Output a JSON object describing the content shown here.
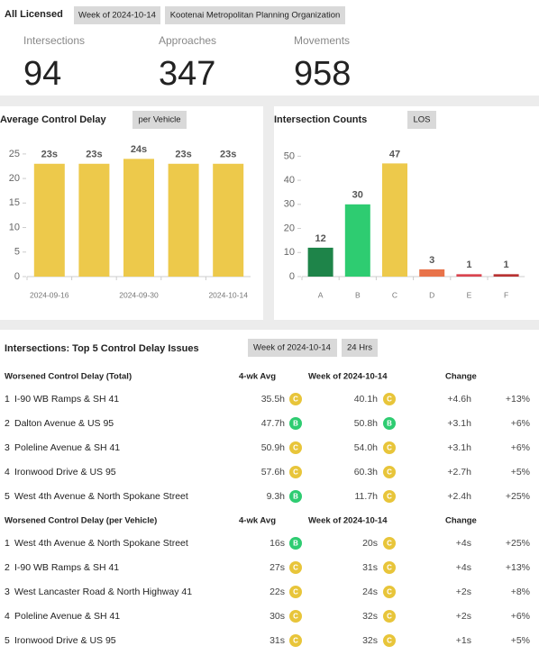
{
  "header": {
    "title": "All Licensed",
    "tags": [
      "Week of 2024-10-14",
      "Kootenai Metropolitan Planning Organization"
    ]
  },
  "stats": [
    {
      "label": "Intersections",
      "value": 94
    },
    {
      "label": "Approaches",
      "value": 347
    },
    {
      "label": "Movements",
      "value": 958
    }
  ],
  "chart_data": [
    {
      "type": "bar",
      "title": "Average Control Delay",
      "button": "per Vehicle",
      "categories": [
        "2024-09-16",
        null,
        "2024-09-30",
        null,
        "2024-10-14"
      ],
      "values": [
        23,
        23,
        24,
        23,
        23
      ],
      "value_labels": [
        "23s",
        "23s",
        "24s",
        "23s",
        "23s"
      ],
      "color": "#edc94b",
      "ylim": [
        0,
        27
      ],
      "yticks": [
        0,
        5,
        10,
        15,
        20,
        25
      ]
    },
    {
      "type": "bar",
      "title": "Intersection Counts",
      "button": "LOS",
      "categories": [
        "A",
        "B",
        "C",
        "D",
        "E",
        "F"
      ],
      "values": [
        12,
        30,
        47,
        3,
        1,
        1
      ],
      "colors": [
        "#1e8449",
        "#2ecc71",
        "#edc94b",
        "#e8734a",
        "#d9444f",
        "#b83232"
      ],
      "ylim": [
        0,
        55
      ],
      "yticks": [
        0,
        10,
        20,
        30,
        40,
        50
      ]
    }
  ],
  "table": {
    "title": "Intersections: Top 5 Control Delay Issues",
    "buttons": [
      "Week of 2024-10-14",
      "24 Hrs"
    ],
    "los_colors": {
      "B": "#2ecc71",
      "C": "#e8c53a"
    },
    "sections": [
      {
        "columns": [
          "Worsened Control Delay (Total)",
          "4-wk Avg",
          "Week of 2024-10-14",
          "Change"
        ],
        "rows": [
          [
            "1",
            "I-90 WB Ramps & SH 41",
            "35.5h",
            "C",
            "40.1h",
            "C",
            "+4.6h",
            "+13%"
          ],
          [
            "2",
            "Dalton Avenue & US 95",
            "47.7h",
            "B",
            "50.8h",
            "B",
            "+3.1h",
            "+6%"
          ],
          [
            "3",
            "Poleline Avenue & SH 41",
            "50.9h",
            "C",
            "54.0h",
            "C",
            "+3.1h",
            "+6%"
          ],
          [
            "4",
            "Ironwood Drive & US 95",
            "57.6h",
            "C",
            "60.3h",
            "C",
            "+2.7h",
            "+5%"
          ],
          [
            "5",
            "West 4th Avenue & North Spokane Street",
            "9.3h",
            "B",
            "11.7h",
            "C",
            "+2.4h",
            "+25%"
          ]
        ]
      },
      {
        "columns": [
          "Worsened Control Delay (per Vehicle)",
          "4-wk Avg",
          "Week of 2024-10-14",
          "Change"
        ],
        "rows": [
          [
            "1",
            "West 4th Avenue & North Spokane Street",
            "16s",
            "B",
            "20s",
            "C",
            "+4s",
            "+25%"
          ],
          [
            "2",
            "I-90 WB Ramps & SH 41",
            "27s",
            "C",
            "31s",
            "C",
            "+4s",
            "+13%"
          ],
          [
            "3",
            "West Lancaster Road & North Highway 41",
            "22s",
            "C",
            "24s",
            "C",
            "+2s",
            "+8%"
          ],
          [
            "4",
            "Poleline Avenue & SH 41",
            "30s",
            "C",
            "32s",
            "C",
            "+2s",
            "+6%"
          ],
          [
            "5",
            "Ironwood Drive & US 95",
            "31s",
            "C",
            "32s",
            "C",
            "+1s",
            "+5%"
          ]
        ]
      }
    ]
  }
}
